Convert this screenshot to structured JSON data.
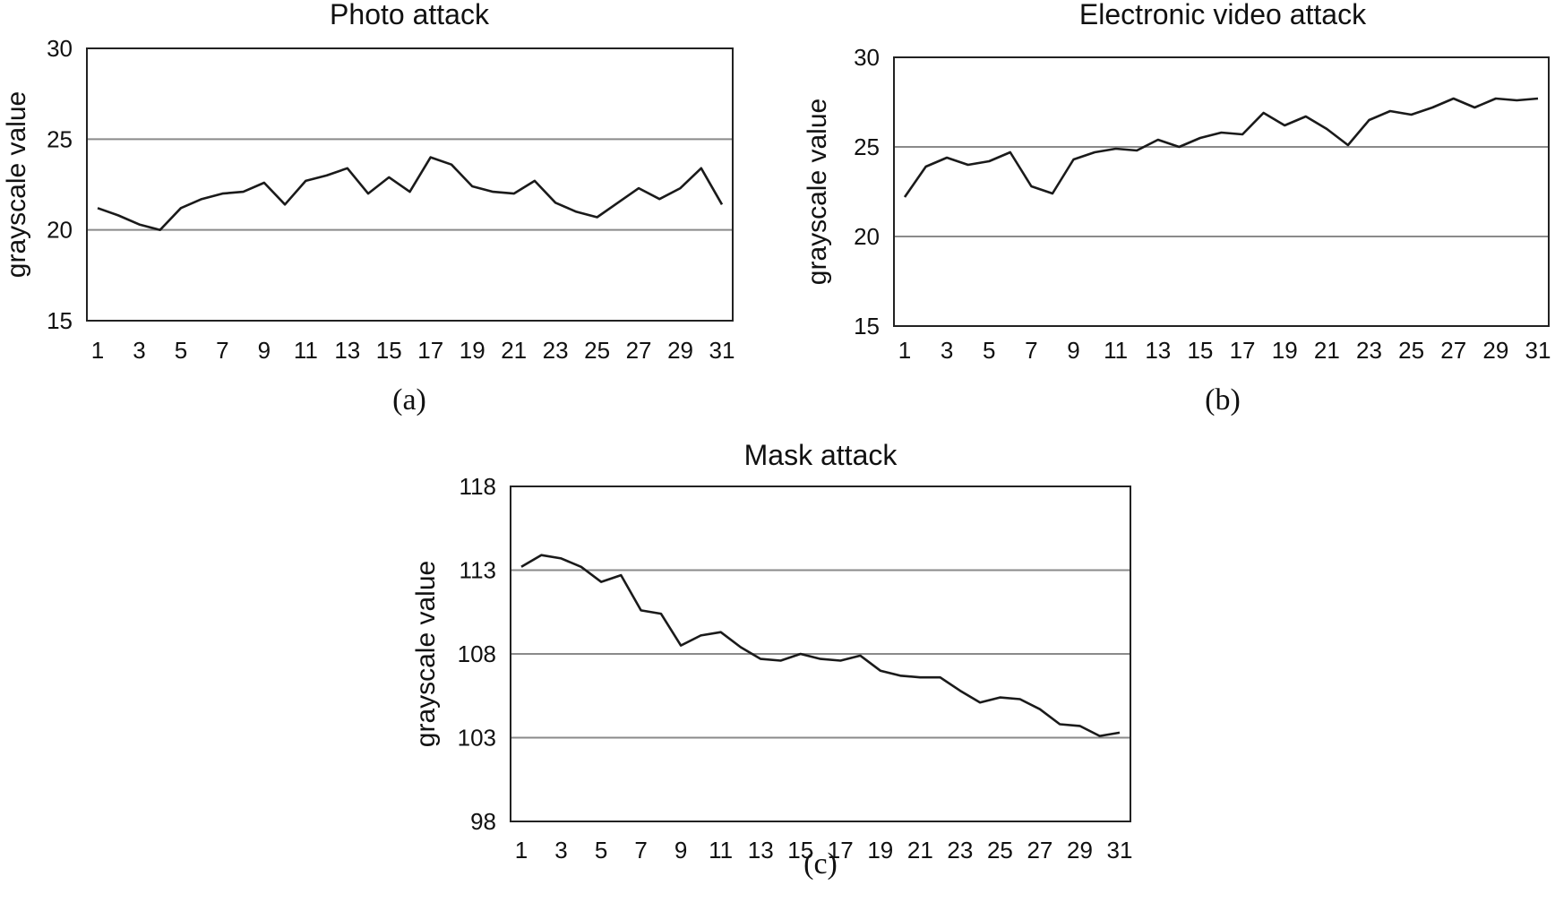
{
  "chart_data": [
    {
      "type": "line",
      "title": "Photo attack",
      "ylabel": "grayscale value",
      "xlabel": "",
      "caption": "(a)",
      "ylim": [
        15,
        30
      ],
      "yticks": [
        "15",
        "20",
        "25",
        "30"
      ],
      "grid": "horizontal",
      "x": [
        1,
        2,
        3,
        4,
        5,
        6,
        7,
        8,
        9,
        10,
        11,
        12,
        13,
        14,
        15,
        16,
        17,
        18,
        19,
        20,
        21,
        22,
        23,
        24,
        25,
        26,
        27,
        28,
        29,
        30,
        31
      ],
      "xtick_labels": [
        "1",
        "3",
        "5",
        "7",
        "9",
        "11",
        "13",
        "15",
        "17",
        "19",
        "21",
        "23",
        "25",
        "27",
        "29",
        "31"
      ],
      "series": [
        {
          "values": [
            21.2,
            20.8,
            20.3,
            20.0,
            21.2,
            21.7,
            22.0,
            22.1,
            22.6,
            21.4,
            22.7,
            23.0,
            23.4,
            22.0,
            22.9,
            22.1,
            24.0,
            23.6,
            22.4,
            22.1,
            22.0,
            22.7,
            21.5,
            21.0,
            20.7,
            21.5,
            22.3,
            21.7,
            22.3,
            23.4,
            21.4
          ]
        }
      ]
    },
    {
      "type": "line",
      "title": "Electronic video attack",
      "ylabel": "grayscale value",
      "xlabel": "",
      "caption": "(b)",
      "ylim": [
        15,
        30
      ],
      "yticks": [
        "15",
        "20",
        "25",
        "30"
      ],
      "grid": "horizontal",
      "x": [
        1,
        2,
        3,
        4,
        5,
        6,
        7,
        8,
        9,
        10,
        11,
        12,
        13,
        14,
        15,
        16,
        17,
        18,
        19,
        20,
        21,
        22,
        23,
        24,
        25,
        26,
        27,
        28,
        29,
        30,
        31
      ],
      "xtick_labels": [
        "1",
        "3",
        "5",
        "7",
        "9",
        "11",
        "13",
        "15",
        "17",
        "19",
        "21",
        "23",
        "25",
        "27",
        "29",
        "31"
      ],
      "series": [
        {
          "values": [
            22.2,
            23.9,
            24.4,
            24.0,
            24.2,
            24.7,
            22.8,
            22.4,
            24.3,
            24.7,
            24.9,
            24.8,
            25.4,
            25.0,
            25.5,
            25.8,
            25.7,
            26.9,
            26.2,
            26.7,
            26.0,
            25.1,
            26.5,
            27.0,
            26.8,
            27.2,
            27.7,
            27.2,
            27.7,
            27.6,
            27.7
          ]
        }
      ]
    },
    {
      "type": "line",
      "title": "Mask attack",
      "ylabel": "grayscale value",
      "xlabel": "",
      "caption": "(c)",
      "ylim": [
        98,
        118
      ],
      "yticks": [
        "98",
        "103",
        "108",
        "113",
        "118"
      ],
      "grid": "horizontal",
      "x": [
        1,
        2,
        3,
        4,
        5,
        6,
        7,
        8,
        9,
        10,
        11,
        12,
        13,
        14,
        15,
        16,
        17,
        18,
        19,
        20,
        21,
        22,
        23,
        24,
        25,
        26,
        27,
        28,
        29,
        30,
        31
      ],
      "xtick_labels": [
        "1",
        "3",
        "5",
        "7",
        "9",
        "11",
        "13",
        "15",
        "17",
        "19",
        "21",
        "23",
        "25",
        "27",
        "29",
        "31"
      ],
      "series": [
        {
          "values": [
            113.2,
            113.9,
            113.7,
            113.2,
            112.3,
            112.7,
            110.6,
            110.4,
            108.5,
            109.1,
            109.3,
            108.4,
            107.7,
            107.6,
            108.0,
            107.7,
            107.6,
            107.9,
            107.0,
            106.7,
            106.6,
            106.6,
            105.8,
            105.1,
            105.4,
            105.3,
            104.7,
            103.8,
            103.7,
            103.1,
            103.3
          ]
        }
      ]
    }
  ]
}
